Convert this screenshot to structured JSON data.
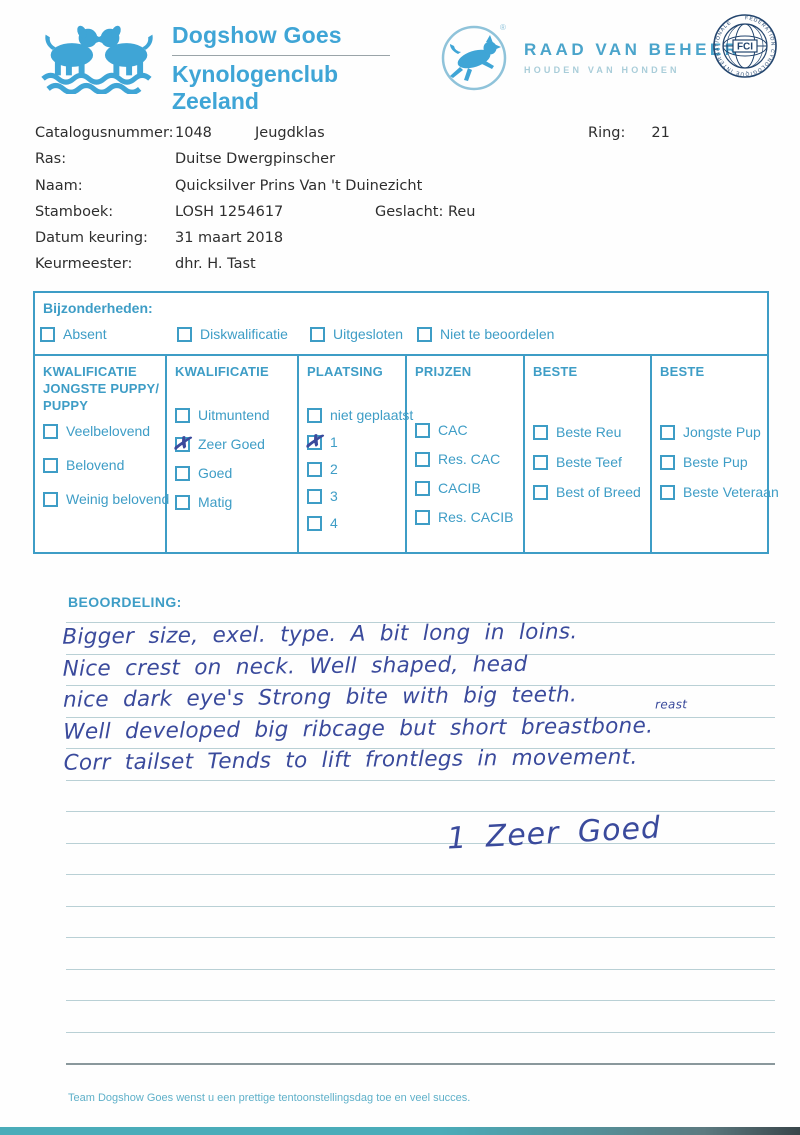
{
  "colors": {
    "brand_blue": "#3fa5d6",
    "table_blue": "#3e9dc6",
    "pen_ink": "#3a4a9c",
    "footer_teal": "#5fb0c9",
    "bottom_bar_teal": "#4aacb9"
  },
  "header": {
    "club": {
      "title": "Dogshow Goes",
      "subtitle": "Kynologenclub Zeeland"
    },
    "raad": {
      "title": "RAAD VAN BEHEER",
      "subtitle": "HOUDEN VAN HONDEN",
      "registered": "®"
    },
    "fci": {
      "label": "FCI",
      "ring_text": "FÉDÉRATION CYNOLOGIQUE INTERNATIONALE"
    }
  },
  "info": {
    "rows": [
      {
        "label": "Catalogusnummer:",
        "value": "1048",
        "extra": "Jeugdklas"
      },
      {
        "label": "Ras:",
        "value": "Duitse Dwergpinscher",
        "extra": ""
      },
      {
        "label": "Naam:",
        "value": "Quicksilver Prins Van 't Duinezicht",
        "extra": ""
      },
      {
        "label": "Stamboek:",
        "value": "LOSH 1254617",
        "extra": "Geslacht: Reu"
      },
      {
        "label": "Datum keuring:",
        "value": "31 maart 2018",
        "extra": ""
      },
      {
        "label": "Keurmeester:",
        "value": "dhr. H. Tast",
        "extra": ""
      }
    ],
    "ring_label": "Ring:",
    "ring_value": "21"
  },
  "bijzonderheden": {
    "title": "Bijzonderheden:",
    "options": [
      {
        "label": "Absent",
        "checked": false
      },
      {
        "label": "Diskwalificatie",
        "checked": false
      },
      {
        "label": "Uitgesloten",
        "checked": false
      },
      {
        "label": "Niet te beoordelen",
        "checked": false
      }
    ]
  },
  "grid": {
    "columns": [
      {
        "header": "KWALIFICATIE JONGSTE PUPPY/ PUPPY",
        "options": [
          {
            "label": "Veelbelovend",
            "checked": false
          },
          {
            "label": "Belovend",
            "checked": false
          },
          {
            "label": "Weinig belovend",
            "checked": false
          }
        ]
      },
      {
        "header": "KWALIFICATIE",
        "options": [
          {
            "label": "Uitmuntend",
            "checked": false
          },
          {
            "label": "Zeer Goed",
            "checked": true
          },
          {
            "label": "Goed",
            "checked": false
          },
          {
            "label": "Matig",
            "checked": false
          }
        ]
      },
      {
        "header": "PLAATSING",
        "options": [
          {
            "label": "niet geplaatst",
            "checked": false
          },
          {
            "label": "1",
            "checked": true
          },
          {
            "label": "2",
            "checked": false
          },
          {
            "label": "3",
            "checked": false
          },
          {
            "label": "4",
            "checked": false
          }
        ]
      },
      {
        "header": "PRIJZEN",
        "options": [
          {
            "label": "CAC",
            "checked": false
          },
          {
            "label": "Res. CAC",
            "checked": false
          },
          {
            "label": "CACIB",
            "checked": false
          },
          {
            "label": "Res. CACIB",
            "checked": false
          }
        ]
      },
      {
        "header": "BESTE",
        "options": [
          {
            "label": "Beste Reu",
            "checked": false
          },
          {
            "label": "Beste Teef",
            "checked": false
          },
          {
            "label": "Best of Breed",
            "checked": false
          }
        ]
      },
      {
        "header": "BESTE",
        "options": [
          {
            "label": "Jongste Pup",
            "checked": false
          },
          {
            "label": "Beste Pup",
            "checked": false
          },
          {
            "label": "Beste Veteraan",
            "checked": false
          }
        ]
      }
    ]
  },
  "beoordeling": {
    "label": "BEOORDELING:",
    "lines": [
      "Bigger size, exel. type. A bit long in loins.",
      "Nice crest on neck. Well shaped, head",
      "nice dark eye's Strong bite with big teeth.",
      "Well developed big ribcage but short breastbone.",
      "Corr tailset Tends to lift frontlegs in movement."
    ],
    "correction": "reast",
    "verdict": "1 Zeer Goed"
  },
  "footer": {
    "text": "Team Dogshow Goes wenst u een prettige tentoonstellingsdag toe en veel succes."
  }
}
